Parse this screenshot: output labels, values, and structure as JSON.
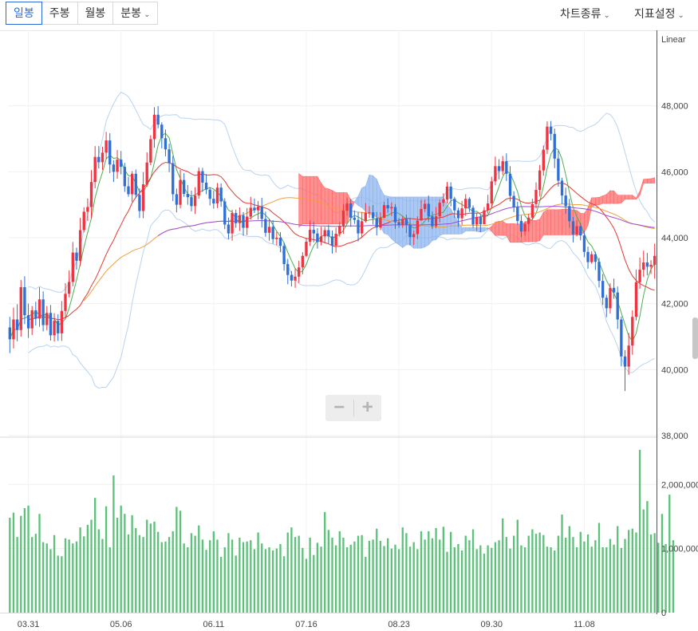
{
  "toolbar": {
    "tabs": [
      {
        "label": "일봉",
        "active": true
      },
      {
        "label": "주봉",
        "active": false
      },
      {
        "label": "월봉",
        "active": false
      },
      {
        "label": "분봉",
        "active": false,
        "dropdown": true
      }
    ],
    "chart_type_label": "차트종류",
    "indicator_label": "지표설정"
  },
  "colors": {
    "up": "#ef3340",
    "down": "#2f6fd6",
    "volume": "#5cc27a",
    "ma5": "#4caf50",
    "ma20": "#e53935",
    "ma60": "#f0a03c",
    "ma120": "#9c4fd6",
    "cloud_bull": "#ff6b6b",
    "cloud_bear": "#8fb5ef",
    "band": "#b9d3ee",
    "active_tab": "#2b6ad8"
  },
  "chart_data": {
    "type": "candlestick",
    "scale_label": "Linear",
    "price_ylim": [
      38000,
      50000
    ],
    "price_ticks": [
      "48,000",
      "46,000",
      "44,000",
      "42,000",
      "40,000",
      "38,000"
    ],
    "volume_ylim": [
      0,
      2700000
    ],
    "volume_ticks": [
      "2,000,000",
      "1,000,000",
      "0"
    ],
    "x_tick_labels": [
      "03.31",
      "05.06",
      "06.11",
      "07.16",
      "08.23",
      "09.30",
      "11.08"
    ],
    "tick_positions": [
      5,
      30,
      55,
      80,
      105,
      130,
      155
    ],
    "candles": [
      [
        41280,
        40920,
        41600,
        40500
      ],
      [
        40920,
        41520,
        41880,
        40640
      ],
      [
        41520,
        41200,
        41980,
        40860
      ],
      [
        41200,
        42500,
        42720,
        41000
      ],
      [
        42500,
        41650,
        42830,
        41380
      ],
      [
        41650,
        41250,
        42000,
        40960
      ],
      [
        41250,
        41800,
        41930,
        41050
      ],
      [
        41800,
        41550,
        42060,
        41340
      ],
      [
        41550,
        42130,
        42500,
        41300
      ],
      [
        42130,
        41350,
        42370,
        41160
      ],
      [
        41350,
        41720,
        41930,
        41190
      ],
      [
        41720,
        41040,
        41960,
        40880
      ],
      [
        41040,
        41480,
        41710,
        40850
      ],
      [
        41480,
        41100,
        41680,
        40870
      ],
      [
        41100,
        41780,
        42080,
        40870
      ],
      [
        41780,
        42300,
        42620,
        41570
      ],
      [
        42300,
        42660,
        43010,
        42190
      ],
      [
        42660,
        43550,
        43870,
        42530
      ],
      [
        43550,
        43300,
        43700,
        43030
      ],
      [
        43300,
        44230,
        44600,
        43140
      ],
      [
        44230,
        44790,
        44920,
        44160
      ],
      [
        44790,
        44930,
        45190,
        44510
      ],
      [
        44930,
        45690,
        46050,
        44580
      ],
      [
        45690,
        46450,
        46780,
        45500
      ],
      [
        46450,
        46290,
        46780,
        46100
      ],
      [
        46290,
        46580,
        46760,
        46060
      ],
      [
        46580,
        46950,
        47210,
        46380
      ],
      [
        46950,
        46220,
        47170,
        45960
      ],
      [
        46220,
        46000,
        46350,
        45690
      ],
      [
        46000,
        46370,
        46660,
        45790
      ],
      [
        46370,
        46150,
        46630,
        45920
      ],
      [
        46150,
        45560,
        46270,
        45390
      ],
      [
        45560,
        45320,
        45840,
        45240
      ],
      [
        45320,
        45940,
        46020,
        45090
      ],
      [
        45940,
        45300,
        46070,
        45200
      ],
      [
        45300,
        44810,
        45500,
        44600
      ],
      [
        44810,
        45620,
        45990,
        44590
      ],
      [
        45620,
        46280,
        46590,
        45540
      ],
      [
        46280,
        46990,
        47110,
        46200
      ],
      [
        46990,
        47730,
        47960,
        46730
      ],
      [
        47730,
        47430,
        47990,
        47320
      ],
      [
        47430,
        47020,
        47500,
        46710
      ],
      [
        47020,
        46680,
        47280,
        46470
      ],
      [
        46680,
        46260,
        46850,
        45990
      ],
      [
        46260,
        45320,
        46480,
        45110
      ],
      [
        45320,
        45000,
        45490,
        44770
      ],
      [
        45000,
        45750,
        46060,
        44890
      ],
      [
        45750,
        45330,
        45960,
        45240
      ],
      [
        45330,
        45230,
        45600,
        45000
      ],
      [
        45230,
        44960,
        45430,
        44800
      ],
      [
        44960,
        45280,
        45530,
        44720
      ],
      [
        45280,
        46020,
        46130,
        45180
      ],
      [
        46020,
        45670,
        46120,
        45390
      ],
      [
        45670,
        45460,
        45930,
        45320
      ],
      [
        45460,
        45180,
        45530,
        44980
      ],
      [
        45180,
        45040,
        45430,
        44880
      ],
      [
        45040,
        45520,
        45660,
        44900
      ],
      [
        45520,
        45100,
        45650,
        44940
      ],
      [
        45100,
        44400,
        45200,
        44260
      ],
      [
        44400,
        44130,
        44610,
        43960
      ],
      [
        44130,
        44750,
        44850,
        43910
      ],
      [
        44750,
        44440,
        44850,
        44300
      ],
      [
        44440,
        44680,
        44920,
        44210
      ],
      [
        44680,
        44300,
        44780,
        44060
      ],
      [
        44300,
        44640,
        44900,
        44080
      ],
      [
        44640,
        44910,
        45240,
        44550
      ],
      [
        44910,
        44830,
        45190,
        44750
      ],
      [
        44830,
        44950,
        45110,
        44550
      ],
      [
        44950,
        44570,
        45210,
        44310
      ],
      [
        44570,
        44150,
        44790,
        44030
      ],
      [
        44150,
        44330,
        44570,
        43910
      ],
      [
        44330,
        43960,
        44530,
        43820
      ],
      [
        43960,
        44000,
        44180,
        43770
      ],
      [
        44000,
        43750,
        44170,
        43560
      ],
      [
        43750,
        43200,
        43860,
        43000
      ],
      [
        43200,
        42870,
        43360,
        42590
      ],
      [
        42870,
        42700,
        42990,
        42520
      ],
      [
        42700,
        42820,
        43070,
        42480
      ],
      [
        42820,
        43100,
        43300,
        42630
      ],
      [
        43100,
        43450,
        43560,
        42890
      ],
      [
        43450,
        43880,
        44000,
        43410
      ],
      [
        43880,
        44240,
        44520,
        43750
      ],
      [
        44240,
        44130,
        44480,
        43860
      ],
      [
        44130,
        43870,
        44290,
        43670
      ],
      [
        43870,
        44040,
        44330,
        43770
      ],
      [
        44040,
        44230,
        44330,
        43830
      ],
      [
        44230,
        44040,
        44400,
        43830
      ],
      [
        44040,
        43760,
        44220,
        43520
      ],
      [
        43760,
        44120,
        44310,
        43550
      ],
      [
        44120,
        44360,
        44480,
        44030
      ],
      [
        44360,
        44820,
        45030,
        44120
      ],
      [
        44820,
        45040,
        45220,
        44660
      ],
      [
        45040,
        44610,
        45180,
        44330
      ],
      [
        44610,
        44540,
        44830,
        44420
      ],
      [
        44540,
        44130,
        44780,
        43890
      ],
      [
        44130,
        44500,
        44780,
        43990
      ],
      [
        44500,
        44760,
        45050,
        44460
      ],
      [
        44760,
        44770,
        44960,
        44600
      ],
      [
        44770,
        44590,
        44990,
        44400
      ],
      [
        44590,
        44310,
        44780,
        44070
      ],
      [
        44310,
        44600,
        44770,
        44230
      ],
      [
        44600,
        44990,
        45090,
        44720
      ],
      [
        44990,
        44890,
        45190,
        44760
      ],
      [
        44890,
        44930,
        45070,
        44660
      ],
      [
        44930,
        44470,
        45020,
        44270
      ],
      [
        44470,
        44380,
        44600,
        44300
      ],
      [
        44380,
        44570,
        44660,
        44300
      ],
      [
        44570,
        44390,
        44700,
        44140
      ],
      [
        44390,
        44020,
        44600,
        43770
      ],
      [
        44020,
        44110,
        44220,
        43780
      ],
      [
        44110,
        44520,
        44650,
        43960
      ],
      [
        44520,
        44870,
        45150,
        44650
      ],
      [
        44870,
        45030,
        45150,
        44780
      ],
      [
        45030,
        44650,
        45280,
        44480
      ],
      [
        44650,
        44350,
        44800,
        44260
      ],
      [
        44350,
        44650,
        44930,
        44290
      ],
      [
        44650,
        45060,
        45160,
        44460
      ],
      [
        45060,
        45160,
        45350,
        44950
      ],
      [
        45160,
        45550,
        45690,
        45040
      ],
      [
        45550,
        45180,
        45680,
        44950
      ],
      [
        45180,
        44830,
        45240,
        44600
      ],
      [
        44830,
        44590,
        44910,
        44330
      ],
      [
        44590,
        44890,
        45120,
        44380
      ],
      [
        44890,
        45180,
        45320,
        44660
      ],
      [
        45180,
        44910,
        45230,
        44780
      ],
      [
        44910,
        44400,
        44980,
        44300
      ],
      [
        44400,
        44630,
        44760,
        44210
      ],
      [
        44630,
        44410,
        44710,
        44170
      ],
      [
        44410,
        44830,
        44930,
        44420
      ],
      [
        44830,
        45040,
        45300,
        44730
      ],
      [
        45040,
        45710,
        45850,
        44920
      ],
      [
        45710,
        46170,
        46460,
        45590
      ],
      [
        46170,
        46020,
        46380,
        45770
      ],
      [
        46020,
        46320,
        46480,
        45900
      ],
      [
        46320,
        45940,
        46560,
        45720
      ],
      [
        45940,
        45270,
        46170,
        45100
      ],
      [
        45270,
        44930,
        45410,
        44780
      ],
      [
        44930,
        44510,
        45090,
        44390
      ],
      [
        44510,
        44190,
        44670,
        44020
      ],
      [
        44190,
        44420,
        44500,
        44060
      ],
      [
        44420,
        44610,
        44720,
        44190
      ],
      [
        44610,
        45020,
        45180,
        44550
      ],
      [
        45020,
        45450,
        45680,
        44890
      ],
      [
        45450,
        46040,
        46210,
        45250
      ],
      [
        46040,
        46670,
        46800,
        45880
      ],
      [
        46670,
        47370,
        47530,
        46540
      ],
      [
        47370,
        47150,
        47540,
        46950
      ],
      [
        47150,
        46400,
        47310,
        46110
      ],
      [
        46400,
        45730,
        46640,
        45550
      ],
      [
        45730,
        45280,
        45820,
        45020
      ],
      [
        45280,
        44960,
        45520,
        44720
      ],
      [
        44960,
        44500,
        45180,
        44300
      ],
      [
        44500,
        44100,
        44630,
        43860
      ],
      [
        44100,
        44350,
        44530,
        44040
      ],
      [
        44350,
        44070,
        44440,
        43920
      ],
      [
        44070,
        43570,
        44200,
        43410
      ],
      [
        43570,
        43260,
        43730,
        43060
      ],
      [
        43260,
        43500,
        43590,
        43210
      ],
      [
        43500,
        43270,
        43580,
        43020
      ],
      [
        43270,
        42690,
        43390,
        42490
      ],
      [
        42690,
        42180,
        42900,
        41960
      ],
      [
        42180,
        41860,
        42270,
        41590
      ],
      [
        41860,
        42480,
        42620,
        41700
      ],
      [
        42480,
        42340,
        42760,
        42150
      ],
      [
        42340,
        41520,
        42520,
        41230
      ],
      [
        41520,
        40400,
        41610,
        40100
      ],
      [
        40400,
        40090,
        40590,
        39350
      ],
      [
        40090,
        40730,
        41110,
        39840
      ],
      [
        40730,
        41600,
        41800,
        40450
      ],
      [
        41600,
        42650,
        43030,
        41490
      ],
      [
        42650,
        43030,
        43400,
        42450
      ],
      [
        43030,
        43250,
        43610,
        42810
      ],
      [
        43250,
        43120,
        43540,
        42860
      ],
      [
        43120,
        43180,
        43320,
        42900
      ],
      [
        43180,
        43450,
        43820,
        42760
      ]
    ],
    "volumes": [
      1480000,
      1560000,
      1180000,
      1510000,
      1630000,
      1670000,
      1180000,
      1230000,
      1540000,
      1100000,
      1080000,
      990000,
      1210000,
      890000,
      880000,
      1160000,
      1140000,
      1080000,
      1110000,
      1330000,
      1190000,
      1370000,
      1450000,
      1790000,
      1300000,
      1150000,
      1660000,
      1020000,
      2140000,
      1480000,
      1670000,
      1540000,
      1220000,
      1520000,
      1320000,
      1210000,
      1180000,
      1450000,
      1390000,
      1420000,
      1260000,
      1100000,
      1110000,
      1180000,
      1270000,
      1650000,
      1590000,
      1080000,
      1020000,
      1240000,
      1200000,
      1360000,
      1140000,
      980000,
      1130000,
      1270000,
      1140000,
      870000,
      1020000,
      1240000,
      1140000,
      890000,
      1170000,
      1100000,
      1110000,
      1130000,
      990000,
      1250000,
      1080000,
      990000,
      1020000,
      970000,
      1000000,
      1070000,
      880000,
      1250000,
      1330000,
      1180000,
      1200000,
      1010000,
      840000,
      1170000,
      900000,
      1090000,
      1030000,
      1570000,
      1290000,
      1170000,
      1050000,
      1270000,
      1170000,
      1020000,
      1060000,
      1110000,
      1200000,
      1210000,
      870000,
      1120000,
      1140000,
      1310000,
      1120000,
      1040000,
      1160000,
      1000000,
      1060000,
      990000,
      1330000,
      1240000,
      1030000,
      1100000,
      990000,
      1270000,
      1140000,
      1270000,
      1160000,
      1320000,
      1140000,
      1340000,
      950000,
      1260000,
      1020000,
      1070000,
      970000,
      1200000,
      1130000,
      1300000,
      990000,
      1050000,
      920000,
      1050000,
      1010000,
      1100000,
      1130000,
      1470000,
      1180000,
      1000000,
      1200000,
      1450000,
      1050000,
      1020000,
      1200000,
      1300000,
      1230000,
      1250000,
      1210000,
      1030000,
      1020000,
      970000,
      1200000,
      1530000,
      1170000,
      1350000,
      1180000,
      1020000,
      1260000,
      1110000,
      1220000,
      1030000,
      1130000,
      1400000,
      1020000,
      1020000,
      1150000,
      1060000,
      1350000,
      1010000,
      1150000,
      1290000,
      1310000,
      1250000,
      2540000,
      1610000,
      1740000,
      1220000,
      1240000,
      1090000,
      1540000,
      1070000,
      1840000,
      1130000
    ]
  }
}
